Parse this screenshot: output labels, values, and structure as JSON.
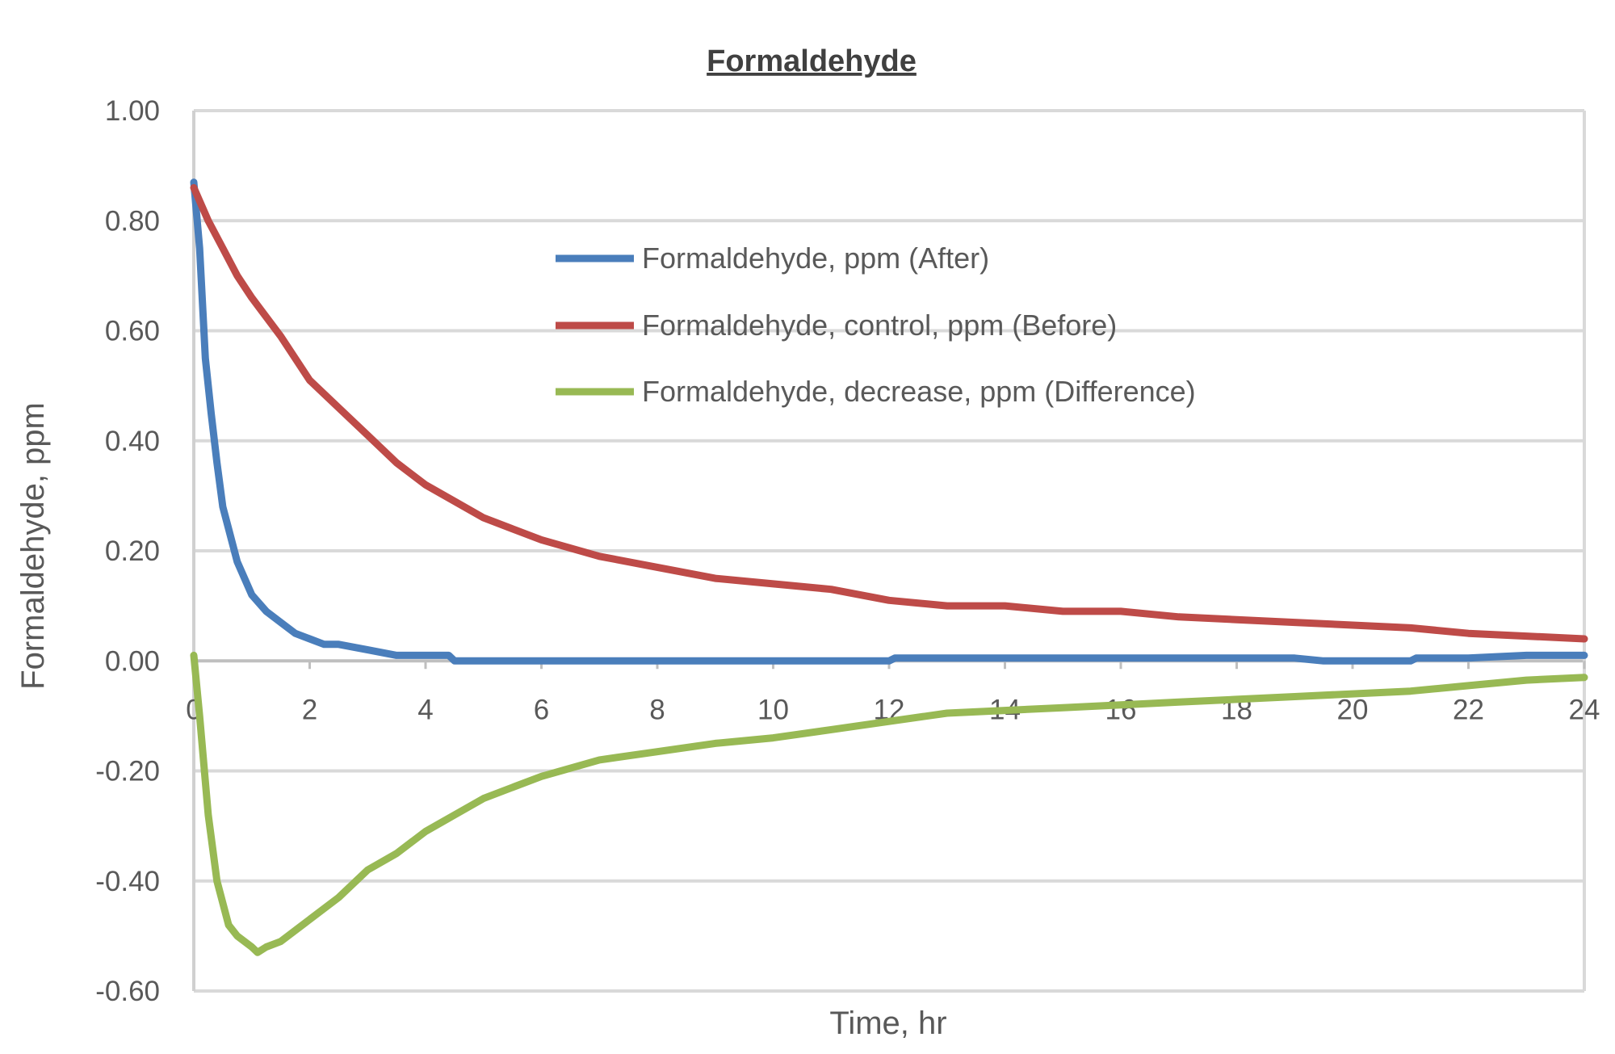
{
  "chart_data": {
    "type": "line",
    "title": "Formaldehyde",
    "xlabel": "Time, hr",
    "ylabel": "Formaldehyde, ppm",
    "xlim": [
      0,
      24
    ],
    "ylim": [
      -0.6,
      1.0
    ],
    "xticks": [
      "0",
      "2",
      "4",
      "6",
      "8",
      "10",
      "12",
      "14",
      "16",
      "18",
      "20",
      "22",
      "24"
    ],
    "yticks": [
      "1.00",
      "0.80",
      "0.60",
      "0.40",
      "0.20",
      "0.00",
      "-0.20",
      "-0.40",
      "-0.60"
    ],
    "grid": true,
    "legend_position": "upper-center",
    "series": [
      {
        "name": "Formaldehyde, ppm (After)",
        "color": "#4a7ebb",
        "x": [
          0,
          0.1,
          0.2,
          0.3,
          0.4,
          0.5,
          0.6,
          0.75,
          1.0,
          1.25,
          1.5,
          1.75,
          2.0,
          2.25,
          2.5,
          3.0,
          3.5,
          4.0,
          4.4,
          4.5,
          6,
          8,
          10,
          12,
          12.1,
          13,
          14,
          15,
          16,
          17,
          18,
          19,
          19.5,
          20,
          21,
          21.1,
          22,
          23,
          24
        ],
        "y": [
          0.87,
          0.75,
          0.55,
          0.45,
          0.36,
          0.28,
          0.24,
          0.18,
          0.12,
          0.09,
          0.07,
          0.05,
          0.04,
          0.03,
          0.03,
          0.02,
          0.01,
          0.01,
          0.01,
          0.0,
          0.0,
          0.0,
          0.0,
          0.0,
          0.005,
          0.005,
          0.005,
          0.005,
          0.005,
          0.005,
          0.005,
          0.005,
          0.0,
          0.0,
          0.0,
          0.005,
          0.005,
          0.01,
          0.01
        ]
      },
      {
        "name": "Formaldehyde, control, ppm (Before)",
        "color": "#be4b48",
        "x": [
          0,
          0.25,
          0.5,
          0.75,
          1,
          1.5,
          2,
          2.5,
          3,
          3.5,
          4,
          4.5,
          5,
          5.5,
          6,
          7,
          8,
          9,
          10,
          11,
          12,
          13,
          14,
          15,
          16,
          17,
          18,
          19,
          20,
          21,
          22,
          23,
          24
        ],
        "y": [
          0.86,
          0.8,
          0.75,
          0.7,
          0.66,
          0.59,
          0.51,
          0.46,
          0.41,
          0.36,
          0.32,
          0.29,
          0.26,
          0.24,
          0.22,
          0.19,
          0.17,
          0.15,
          0.14,
          0.13,
          0.11,
          0.1,
          0.1,
          0.09,
          0.09,
          0.08,
          0.075,
          0.07,
          0.065,
          0.06,
          0.05,
          0.045,
          0.04
        ]
      },
      {
        "name": "Formaldehyde, decrease, ppm (Difference)",
        "color": "#98b954",
        "x": [
          0,
          0.1,
          0.25,
          0.4,
          0.6,
          0.75,
          1,
          1.1,
          1.25,
          1.5,
          2,
          2.5,
          3,
          3.5,
          4,
          4.5,
          5,
          5.5,
          6,
          7,
          8,
          9,
          10,
          11,
          12,
          13,
          14,
          15,
          16,
          17,
          18,
          19,
          20,
          21,
          22,
          23,
          24
        ],
        "y": [
          0.01,
          -0.1,
          -0.28,
          -0.4,
          -0.48,
          -0.5,
          -0.52,
          -0.53,
          -0.52,
          -0.51,
          -0.47,
          -0.43,
          -0.38,
          -0.35,
          -0.31,
          -0.28,
          -0.25,
          -0.23,
          -0.21,
          -0.18,
          -0.165,
          -0.15,
          -0.14,
          -0.125,
          -0.11,
          -0.095,
          -0.09,
          -0.085,
          -0.08,
          -0.075,
          -0.07,
          -0.065,
          -0.06,
          -0.055,
          -0.045,
          -0.035,
          -0.03
        ]
      }
    ]
  }
}
